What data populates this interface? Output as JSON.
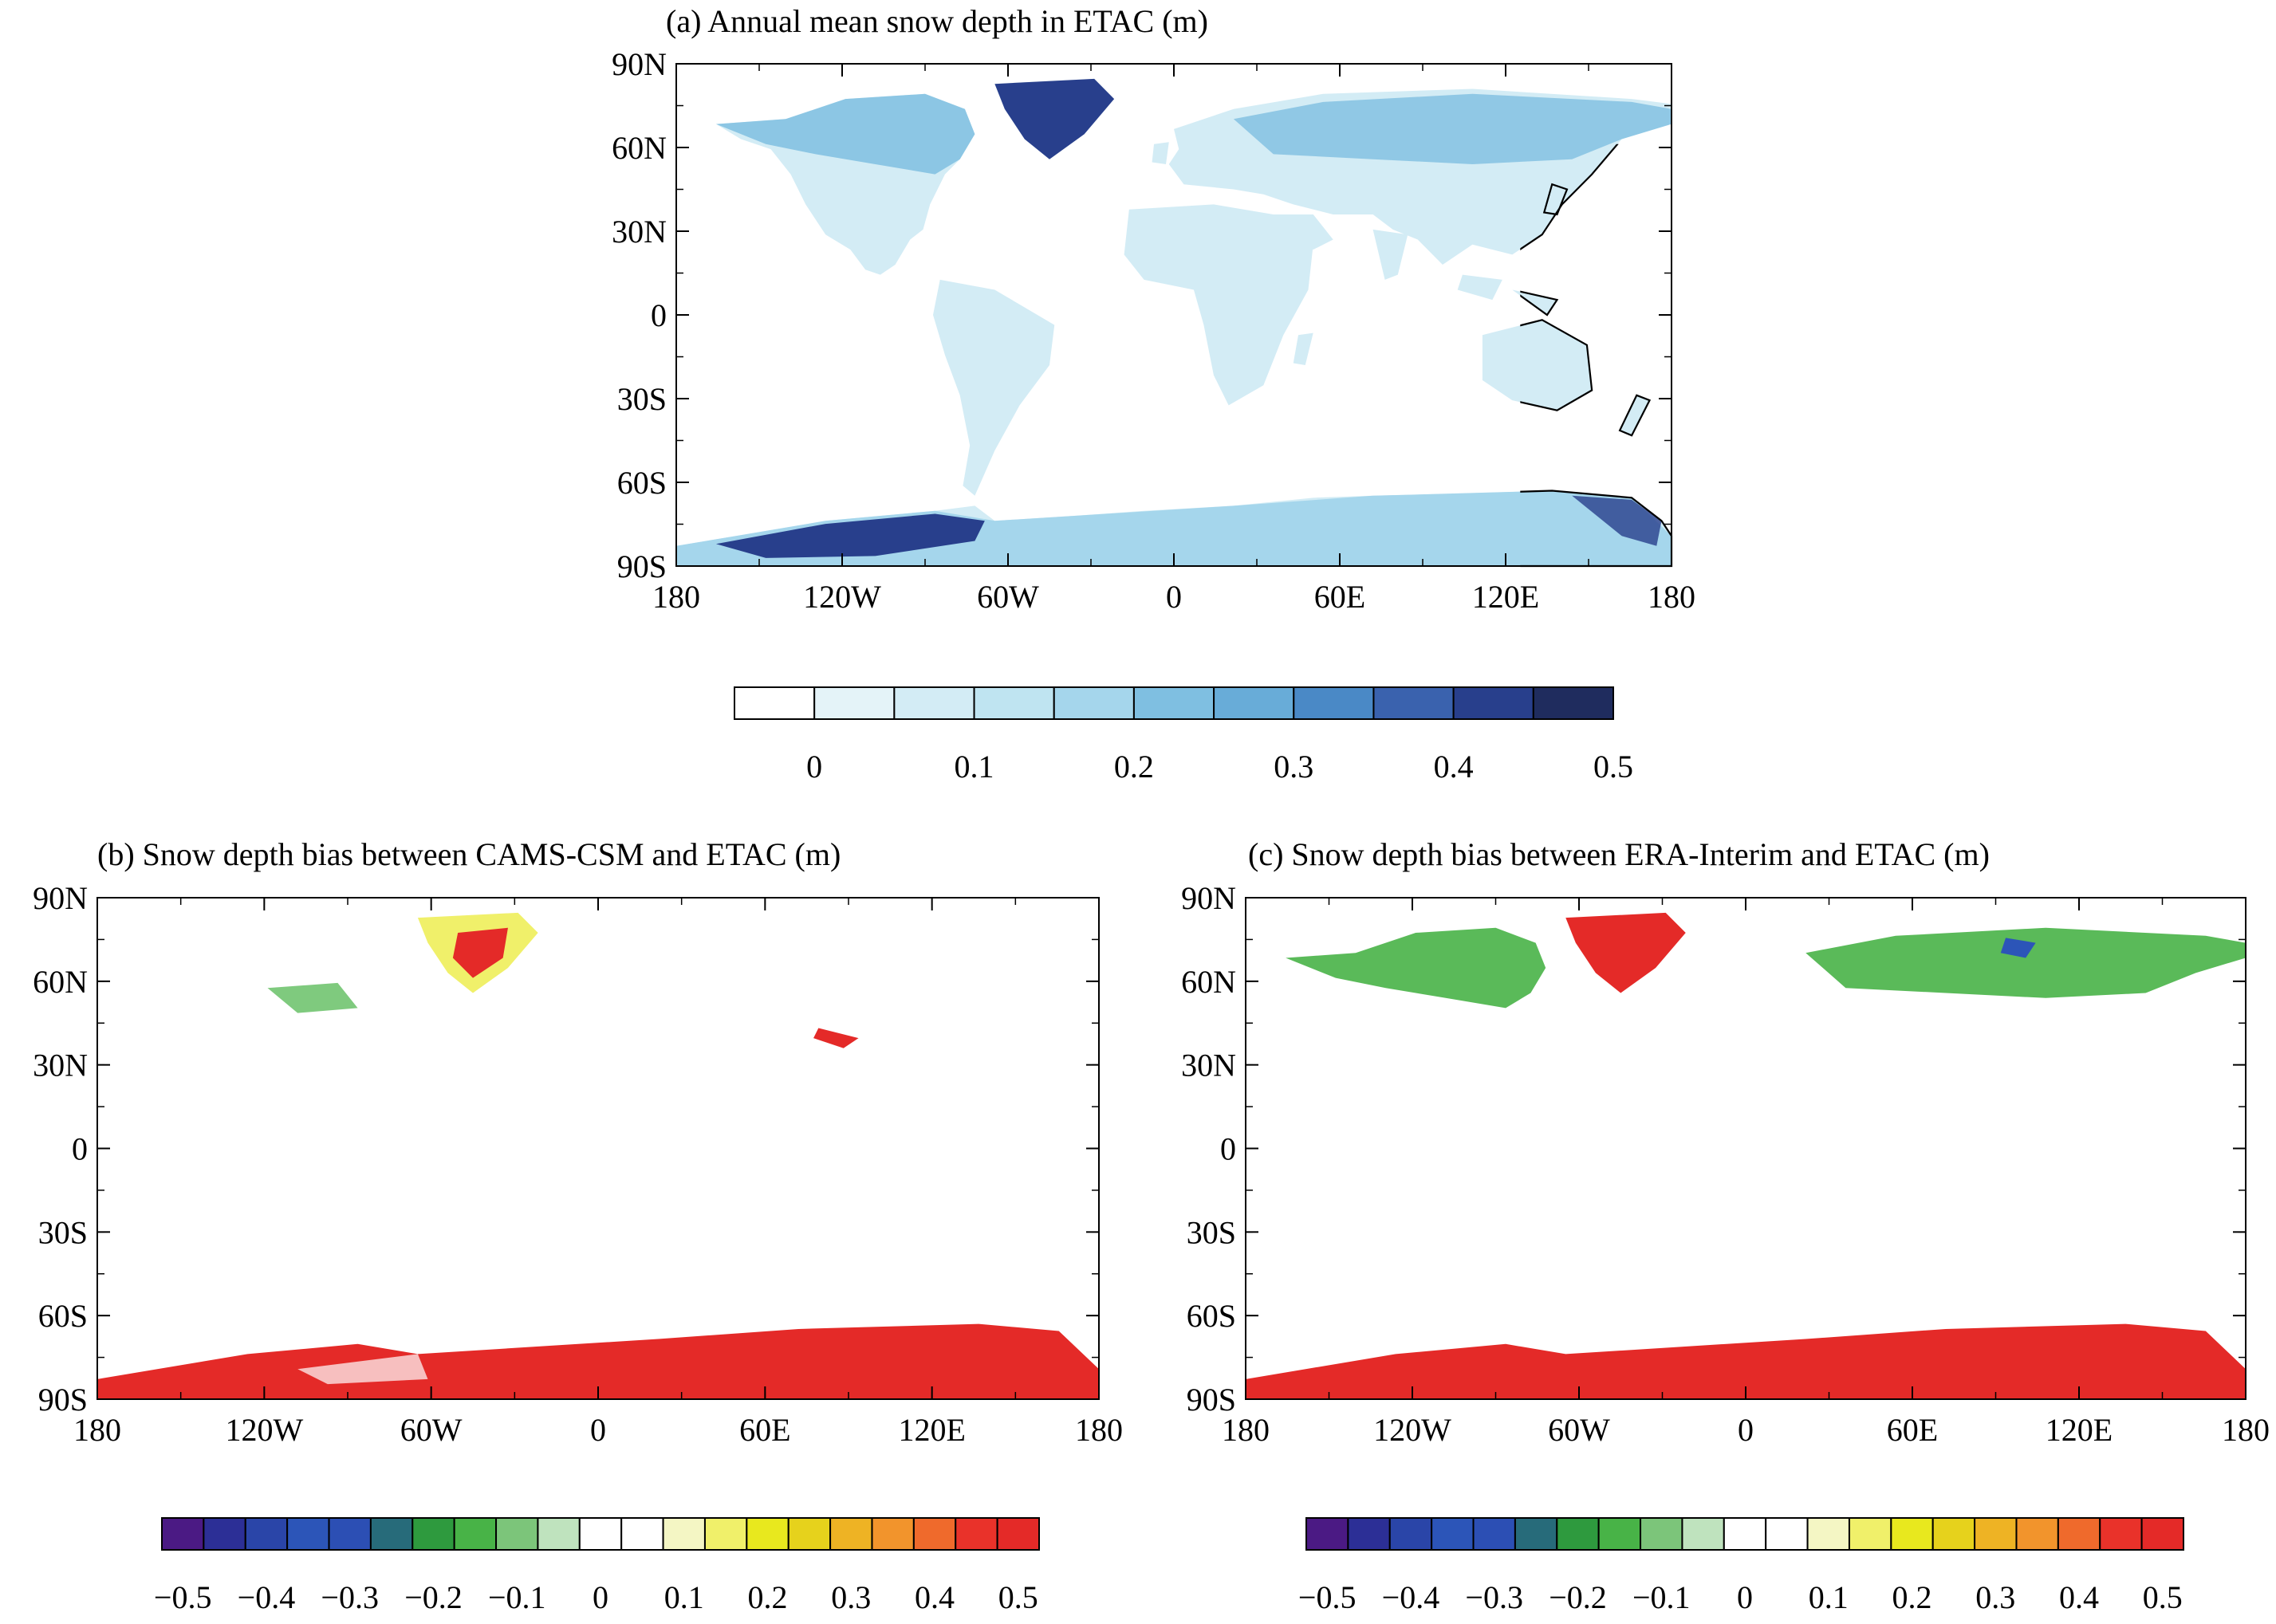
{
  "panels": [
    {
      "id": "a",
      "title": "(a) Annual mean snow depth in ETAC (m)",
      "lat_labels": [
        "90N",
        "60N",
        "30N",
        "0",
        "30S",
        "60S",
        "90S"
      ],
      "lon_labels": [
        "180",
        "120W",
        "60W",
        "0",
        "60E",
        "120E",
        "180"
      ],
      "colorbar": {
        "labels": [
          "0",
          "0.1",
          "0.2",
          "0.3",
          "0.4",
          "0.5"
        ],
        "colors": [
          "#ffffff",
          "#e4f3f8",
          "#d3ecf5",
          "#bfe4f1",
          "#a5d6ec",
          "#7fbfe1",
          "#68acd8",
          "#4a89c6",
          "#3a62ae",
          "#283f8c",
          "#1f2c5e"
        ]
      }
    },
    {
      "id": "b",
      "title": "(b) Snow depth bias between CAMS-CSM and ETAC (m)",
      "lat_labels": [
        "90N",
        "60N",
        "30N",
        "0",
        "30S",
        "60S",
        "90S"
      ],
      "lon_labels": [
        "180",
        "120W",
        "60W",
        "0",
        "60E",
        "120E",
        "180"
      ],
      "colorbar": {
        "labels": [
          "−0.5",
          "−0.4",
          "−0.3",
          "−0.2",
          "−0.1",
          "0",
          "0.1",
          "0.2",
          "0.3",
          "0.4",
          "0.5"
        ],
        "colors": [
          "#4b1a84",
          "#2c2f96",
          "#2a45a8",
          "#2c55b8",
          "#2c4fb4",
          "#276b7a",
          "#2e9a3e",
          "#48b347",
          "#7cc57a",
          "#bfe3be",
          "#ffffff",
          "#ffffff",
          "#f4f6c4",
          "#f0f06a",
          "#e8e81e",
          "#e6d21c",
          "#eeb324",
          "#f2942c",
          "#ef6a2c",
          "#e9322a",
          "#e42a28"
        ]
      }
    },
    {
      "id": "c",
      "title": "(c) Snow depth bias between ERA-Interim and ETAC (m)",
      "lat_labels": [
        "90N",
        "60N",
        "30N",
        "0",
        "30S",
        "60S",
        "90S"
      ],
      "lon_labels": [
        "180",
        "120W",
        "60W",
        "0",
        "60E",
        "120E",
        "180"
      ],
      "colorbar": {
        "labels": [
          "−0.5",
          "−0.4",
          "−0.3",
          "−0.2",
          "−0.1",
          "0",
          "0.1",
          "0.2",
          "0.3",
          "0.4",
          "0.5"
        ],
        "colors": [
          "#4b1a84",
          "#2c2f96",
          "#2a45a8",
          "#2c55b8",
          "#2c4fb4",
          "#276b7a",
          "#2e9a3e",
          "#48b347",
          "#7cc57a",
          "#bfe3be",
          "#ffffff",
          "#ffffff",
          "#f4f6c4",
          "#f0f06a",
          "#e8e81e",
          "#e6d21c",
          "#eeb324",
          "#f2942c",
          "#ef6a2c",
          "#e9322a",
          "#e42a28"
        ]
      }
    }
  ],
  "land_colors": {
    "a": {
      "base": "#d3ecf5",
      "high": "#7fbfe1",
      "deep": "#283f8c",
      "polar": "#a5d6ec"
    },
    "b": {
      "base": "#ffffff",
      "green": "#48b347",
      "red": "#e42a28",
      "yellow": "#f0f06a"
    },
    "c": {
      "base": "#ffffff",
      "green": "#48b347",
      "red": "#e42a28",
      "blue": "#2c55b8"
    }
  }
}
